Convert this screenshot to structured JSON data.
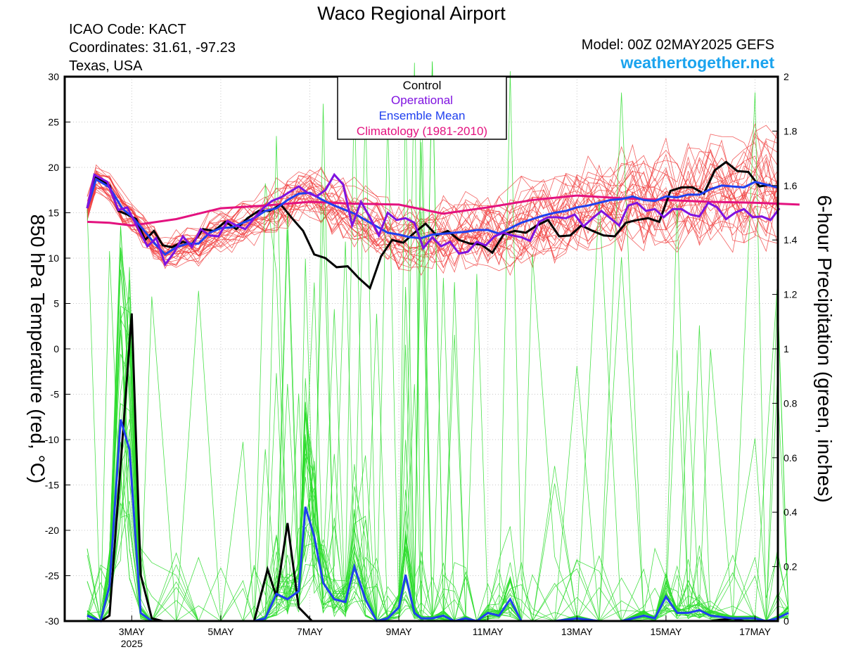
{
  "header": {
    "title": "Waco Regional Airport",
    "icao": "ICAO Code: KACT",
    "coords": "Coordinates: 31.61, -97.23",
    "region": "Texas, USA",
    "model": "Model: 00Z 02MAY2025 GEFS",
    "site": "weathertogether.net"
  },
  "colors": {
    "members_temp": "#f03c3c",
    "members_precip": "#2adc2a",
    "control": "#000000",
    "operational": "#7f12e0",
    "ensemble_mean": "#1f3fef",
    "climatology": "#e3127f",
    "site": "#1aa3ee"
  },
  "chart_data": {
    "type": "line",
    "title": "Waco Regional Airport",
    "x_unit": "days since 00Z 02MAY2025",
    "x_range": [
      0,
      16
    ],
    "x_ticks": [
      {
        "x": 1,
        "label": "3MAY",
        "sub": "2025"
      },
      {
        "x": 3,
        "label": "5MAY"
      },
      {
        "x": 5,
        "label": "7MAY"
      },
      {
        "x": 7,
        "label": "9MAY"
      },
      {
        "x": 9,
        "label": "11MAY"
      },
      {
        "x": 11,
        "label": "13MAY"
      },
      {
        "x": 13,
        "label": "15MAY"
      },
      {
        "x": 15,
        "label": "17MAY"
      }
    ],
    "left_axis": {
      "label": "850 hPa Temperature (red, °C)",
      "range": [
        -30,
        30
      ],
      "ticks": [
        30,
        25,
        20,
        15,
        10,
        5,
        0,
        -5,
        -10,
        -15,
        -20,
        -25,
        -30
      ]
    },
    "right_axis": {
      "label": "6-hour Precipitation (green, inches)",
      "range": [
        0,
        2
      ],
      "ticks": [
        "2",
        "1.8",
        "1.6",
        "1.4",
        "1.2",
        "1",
        "0.8",
        "0.6",
        "0.4",
        "0.2",
        "0"
      ]
    },
    "legend": {
      "placement": "top-center",
      "items": [
        {
          "label": "Control",
          "color": "#000000"
        },
        {
          "label": "Operational",
          "color": "#7f12e0"
        },
        {
          "label": "Ensemble Mean",
          "color": "#1f3fef"
        },
        {
          "label": "Climatology (1981-2010)",
          "color": "#e3127f"
        }
      ]
    },
    "series": {
      "control_temp": [
        [
          0,
          15.5
        ],
        [
          0.16,
          19
        ],
        [
          0.5,
          18
        ],
        [
          0.7,
          15.2
        ],
        [
          0.9,
          14.8
        ],
        [
          1.1,
          14.3
        ],
        [
          1.3,
          12
        ],
        [
          1.5,
          13
        ],
        [
          1.7,
          11.4
        ],
        [
          1.9,
          11.2
        ],
        [
          2.15,
          11.8
        ],
        [
          2.35,
          11.5
        ],
        [
          2.6,
          13.2
        ],
        [
          2.85,
          13
        ],
        [
          3.1,
          14
        ],
        [
          3.35,
          13.2
        ],
        [
          3.6,
          14.4
        ],
        [
          3.85,
          15.2
        ],
        [
          4.1,
          15.2
        ],
        [
          4.35,
          15.9
        ],
        [
          4.6,
          14.4
        ],
        [
          4.85,
          13
        ],
        [
          5.1,
          10.4
        ],
        [
          5.35,
          10
        ],
        [
          5.6,
          9
        ],
        [
          5.85,
          9.1
        ],
        [
          6.1,
          7.8
        ],
        [
          6.35,
          6.7
        ],
        [
          6.6,
          10.2
        ],
        [
          6.85,
          12
        ],
        [
          7.1,
          11.7
        ],
        [
          7.35,
          12.8
        ],
        [
          7.6,
          13.8
        ],
        [
          7.85,
          12.5
        ],
        [
          8.1,
          13
        ],
        [
          8.35,
          12
        ],
        [
          8.6,
          11.6
        ],
        [
          8.85,
          11.5
        ],
        [
          9.1,
          10.6
        ],
        [
          9.35,
          12.6
        ],
        [
          9.6,
          13
        ],
        [
          9.85,
          12.8
        ],
        [
          10.1,
          13.6
        ],
        [
          10.35,
          14.2
        ],
        [
          10.6,
          12.4
        ],
        [
          10.85,
          12.5
        ],
        [
          11.1,
          13.6
        ],
        [
          11.35,
          13
        ],
        [
          11.6,
          12.5
        ],
        [
          11.85,
          12.4
        ],
        [
          12.1,
          13.9
        ],
        [
          12.35,
          14.2
        ],
        [
          12.6,
          14.4
        ],
        [
          12.85,
          14
        ],
        [
          13.1,
          17.4
        ],
        [
          13.35,
          17.8
        ],
        [
          13.6,
          17.8
        ],
        [
          13.85,
          17.1
        ],
        [
          14.1,
          19.7
        ],
        [
          14.35,
          20.6
        ],
        [
          14.6,
          19.6
        ],
        [
          14.85,
          19.5
        ],
        [
          15.1,
          17.9
        ],
        [
          15.35,
          18.1
        ]
      ],
      "operational_temp": [
        [
          0,
          15.5
        ],
        [
          0.16,
          19.2
        ],
        [
          0.45,
          18.4
        ],
        [
          0.7,
          15.3
        ],
        [
          0.9,
          15.6
        ],
        [
          1.15,
          13.2
        ],
        [
          1.35,
          11.3
        ],
        [
          1.55,
          12.2
        ],
        [
          1.75,
          9.3
        ],
        [
          1.95,
          10.6
        ],
        [
          2.15,
          12.4
        ],
        [
          2.35,
          11.2
        ],
        [
          2.55,
          13.2
        ],
        [
          2.75,
          12.5
        ],
        [
          2.95,
          12.4
        ],
        [
          3.15,
          14.1
        ],
        [
          3.35,
          13.6
        ],
        [
          3.55,
          13.2
        ],
        [
          3.75,
          14.4
        ],
        [
          3.95,
          15.5
        ],
        [
          4.15,
          16.3
        ],
        [
          4.35,
          16.7
        ],
        [
          4.55,
          17.3
        ],
        [
          4.75,
          17.9
        ],
        [
          4.95,
          17.2
        ],
        [
          5.15,
          16.8
        ],
        [
          5.35,
          17.5
        ],
        [
          5.55,
          19.2
        ],
        [
          5.75,
          18.1
        ],
        [
          5.95,
          13.6
        ],
        [
          6.15,
          16.2
        ],
        [
          6.35,
          14.5
        ],
        [
          6.55,
          12.5
        ],
        [
          6.75,
          15
        ],
        [
          6.95,
          14.2
        ],
        [
          7.15,
          14.4
        ],
        [
          7.35,
          13.9
        ],
        [
          7.55,
          11.1
        ],
        [
          7.75,
          12.3
        ],
        [
          7.95,
          11.3
        ],
        [
          8.15,
          11.8
        ],
        [
          8.35,
          10.5
        ],
        [
          8.55,
          10.7
        ],
        [
          8.75,
          11.8
        ],
        [
          8.95,
          11.4
        ],
        [
          9.15,
          12.4
        ],
        [
          9.35,
          12.8
        ],
        [
          9.55,
          12.5
        ],
        [
          9.75,
          12.3
        ],
        [
          9.95,
          11.9
        ],
        [
          10.15,
          14
        ],
        [
          10.35,
          14.5
        ],
        [
          10.55,
          14.5
        ],
        [
          10.75,
          14.4
        ],
        [
          10.95,
          14.8
        ],
        [
          11.15,
          13.5
        ],
        [
          11.35,
          14.4
        ],
        [
          11.55,
          15.2
        ],
        [
          11.75,
          14.4
        ],
        [
          11.95,
          13.6
        ],
        [
          12.15,
          15.8
        ],
        [
          12.35,
          16.1
        ],
        [
          12.55,
          15.2
        ],
        [
          12.75,
          15.4
        ],
        [
          12.95,
          14.5
        ],
        [
          13.15,
          15.4
        ],
        [
          13.35,
          15.4
        ],
        [
          13.55,
          14.8
        ],
        [
          13.75,
          14.6
        ],
        [
          13.95,
          16.1
        ],
        [
          14.15,
          15.6
        ],
        [
          14.35,
          14.3
        ],
        [
          14.55,
          15
        ],
        [
          14.75,
          15.4
        ],
        [
          14.95,
          14.5
        ],
        [
          15.15,
          14.6
        ],
        [
          15.35,
          14.2
        ],
        [
          15.55,
          15.5
        ]
      ],
      "ensemble_mean_temp": [
        [
          0,
          15.5
        ],
        [
          0.2,
          18.7
        ],
        [
          0.5,
          17.8
        ],
        [
          0.8,
          15.4
        ],
        [
          1,
          14.6
        ],
        [
          1.25,
          13.2
        ],
        [
          1.5,
          11.7
        ],
        [
          1.75,
          10.4
        ],
        [
          2,
          11.2
        ],
        [
          2.25,
          11.6
        ],
        [
          2.5,
          11.6
        ],
        [
          2.75,
          12.8
        ],
        [
          3,
          13.3
        ],
        [
          3.25,
          13.4
        ],
        [
          3.5,
          13.9
        ],
        [
          3.75,
          14.4
        ],
        [
          4,
          15.2
        ],
        [
          4.25,
          15.5
        ],
        [
          4.5,
          16.4
        ],
        [
          4.75,
          17.1
        ],
        [
          5,
          17.2
        ],
        [
          5.25,
          16.5
        ],
        [
          5.5,
          15.9
        ],
        [
          5.75,
          15.4
        ],
        [
          6,
          14.9
        ],
        [
          6.25,
          14.2
        ],
        [
          6.5,
          13.5
        ],
        [
          6.75,
          12.8
        ],
        [
          7,
          12.6
        ],
        [
          7.25,
          12.3
        ],
        [
          7.5,
          12.2
        ],
        [
          7.75,
          12.6
        ],
        [
          8,
          12.7
        ],
        [
          8.25,
          12.8
        ],
        [
          8.5,
          12.9
        ],
        [
          8.75,
          13.1
        ],
        [
          9,
          13.1
        ],
        [
          9.25,
          12.7
        ],
        [
          9.5,
          13.3
        ],
        [
          9.75,
          13.9
        ],
        [
          10,
          14.3
        ],
        [
          10.25,
          14.7
        ],
        [
          10.5,
          15
        ],
        [
          10.75,
          15.2
        ],
        [
          11,
          15.6
        ],
        [
          11.25,
          15.8
        ],
        [
          11.5,
          16.1
        ],
        [
          11.75,
          16.4
        ],
        [
          12,
          16.5
        ],
        [
          12.25,
          16.8
        ],
        [
          12.5,
          16.4
        ],
        [
          12.75,
          16.3
        ],
        [
          13,
          16.8
        ],
        [
          13.25,
          16.7
        ],
        [
          13.5,
          17
        ],
        [
          13.75,
          17
        ],
        [
          14,
          17.6
        ],
        [
          14.25,
          18
        ],
        [
          14.5,
          17.9
        ],
        [
          14.75,
          17.8
        ],
        [
          15,
          18.4
        ],
        [
          15.25,
          18.1
        ],
        [
          15.5,
          17.8
        ]
      ],
      "climatology_temp": [
        [
          0,
          14
        ],
        [
          0.5,
          13.9
        ],
        [
          1,
          13.6
        ],
        [
          2,
          14.3
        ],
        [
          3,
          15.5
        ],
        [
          4,
          15.8
        ],
        [
          5,
          16.2
        ],
        [
          6,
          16
        ],
        [
          7,
          15.9
        ],
        [
          8,
          14.9
        ],
        [
          9,
          15.6
        ],
        [
          10,
          16.4
        ],
        [
          11,
          16.9
        ],
        [
          12,
          16.6
        ],
        [
          13,
          16.4
        ],
        [
          14,
          16.2
        ],
        [
          15,
          16.1
        ],
        [
          16,
          15.9
        ]
      ],
      "control_precip": [
        [
          0,
          0.02
        ],
        [
          0.3,
          0
        ],
        [
          0.5,
          0.02
        ],
        [
          1,
          1.13
        ],
        [
          1.2,
          0.17
        ],
        [
          1.45,
          0.01
        ],
        [
          1.7,
          0
        ],
        [
          2,
          0
        ],
        [
          2.5,
          0
        ],
        [
          3,
          0
        ],
        [
          3.5,
          0
        ],
        [
          3.75,
          0
        ],
        [
          4.05,
          0.19
        ],
        [
          4.25,
          0.09
        ],
        [
          4.5,
          0.36
        ],
        [
          4.75,
          0.05
        ],
        [
          5.05,
          0
        ],
        [
          5.5,
          0
        ],
        [
          6,
          0
        ],
        [
          6.5,
          0
        ],
        [
          7,
          0
        ],
        [
          7.5,
          0
        ],
        [
          8,
          0
        ],
        [
          8.5,
          0
        ],
        [
          9,
          0
        ],
        [
          9.5,
          0
        ],
        [
          10,
          0
        ],
        [
          10.5,
          0
        ],
        [
          11,
          0
        ],
        [
          11.5,
          0
        ],
        [
          12,
          0
        ],
        [
          12.5,
          0
        ],
        [
          13,
          0
        ],
        [
          13.5,
          0
        ],
        [
          14,
          0
        ],
        [
          14.5,
          0.01
        ],
        [
          14.75,
          0
        ],
        [
          15,
          0
        ]
      ],
      "ensemble_mean_precip": [
        [
          0,
          0.02
        ],
        [
          0.3,
          0
        ],
        [
          0.5,
          0.13
        ],
        [
          0.75,
          0.74
        ],
        [
          0.95,
          0.63
        ],
        [
          1.2,
          0.03
        ],
        [
          1.45,
          0
        ],
        [
          2,
          0
        ],
        [
          2.5,
          0
        ],
        [
          3,
          0
        ],
        [
          3.5,
          0
        ],
        [
          3.75,
          0
        ],
        [
          4,
          0.01
        ],
        [
          4.25,
          0.1
        ],
        [
          4.5,
          0.08
        ],
        [
          4.75,
          0.11
        ],
        [
          4.9,
          0.42
        ],
        [
          5.1,
          0.31
        ],
        [
          5.3,
          0.14
        ],
        [
          5.55,
          0.08
        ],
        [
          5.8,
          0.07
        ],
        [
          6,
          0.2
        ],
        [
          6.25,
          0.08
        ],
        [
          6.5,
          0
        ],
        [
          6.75,
          0.01
        ],
        [
          7,
          0.05
        ],
        [
          7.15,
          0.17
        ],
        [
          7.35,
          0.03
        ],
        [
          7.5,
          0.01
        ],
        [
          7.75,
          0.01
        ],
        [
          8,
          0.02
        ],
        [
          8.25,
          0
        ],
        [
          8.5,
          0.01
        ],
        [
          8.75,
          0
        ],
        [
          9,
          0.03
        ],
        [
          9.25,
          0.02
        ],
        [
          9.5,
          0.08
        ],
        [
          9.75,
          0
        ],
        [
          10,
          0
        ],
        [
          10.5,
          0
        ],
        [
          11,
          0.01
        ],
        [
          11.5,
          0
        ],
        [
          12,
          0
        ],
        [
          12.5,
          0.02
        ],
        [
          12.75,
          0.01
        ],
        [
          13,
          0.09
        ],
        [
          13.25,
          0.03
        ],
        [
          13.5,
          0.03
        ],
        [
          13.75,
          0.04
        ],
        [
          14,
          0.02
        ],
        [
          14.5,
          0.01
        ],
        [
          15,
          0.01
        ],
        [
          15.25,
          0
        ],
        [
          15.5,
          0.01
        ],
        [
          15.75,
          0.03
        ]
      ]
    }
  }
}
